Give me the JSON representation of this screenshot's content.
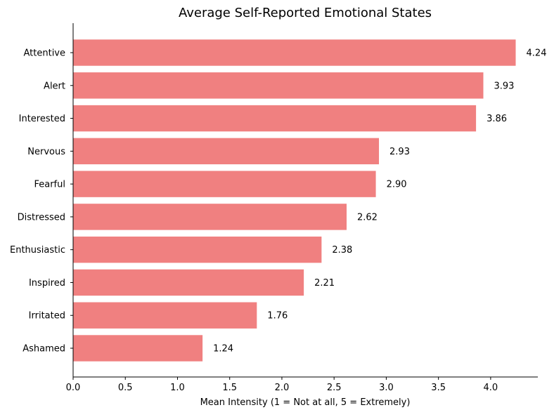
{
  "chart_data": {
    "type": "bar",
    "orientation": "horizontal",
    "title": "Average Self-Reported Emotional States",
    "xlabel": "Mean Intensity (1 = Not at all, 5 = Extremely)",
    "ylabel": "",
    "categories": [
      "Attentive",
      "Alert",
      "Interested",
      "Nervous",
      "Fearful",
      "Distressed",
      "Enthusiastic",
      "Inspired",
      "Irritated",
      "Ashamed"
    ],
    "values": [
      4.24,
      3.93,
      3.86,
      2.93,
      2.9,
      2.62,
      2.38,
      2.21,
      1.76,
      1.24
    ],
    "value_labels": [
      "4.24",
      "3.93",
      "3.86",
      "2.93",
      "2.90",
      "2.62",
      "2.38",
      "2.21",
      "1.76",
      "1.24"
    ],
    "xlim": [
      0,
      4.452
    ],
    "xticks": [
      0.0,
      0.5,
      1.0,
      1.5,
      2.0,
      2.5,
      3.0,
      3.5,
      4.0
    ],
    "xtick_labels": [
      "0.0",
      "0.5",
      "1.0",
      "1.5",
      "2.0",
      "2.5",
      "3.0",
      "3.5",
      "4.0"
    ],
    "grid": false,
    "bar_color": "#f08080",
    "legend": "none"
  }
}
